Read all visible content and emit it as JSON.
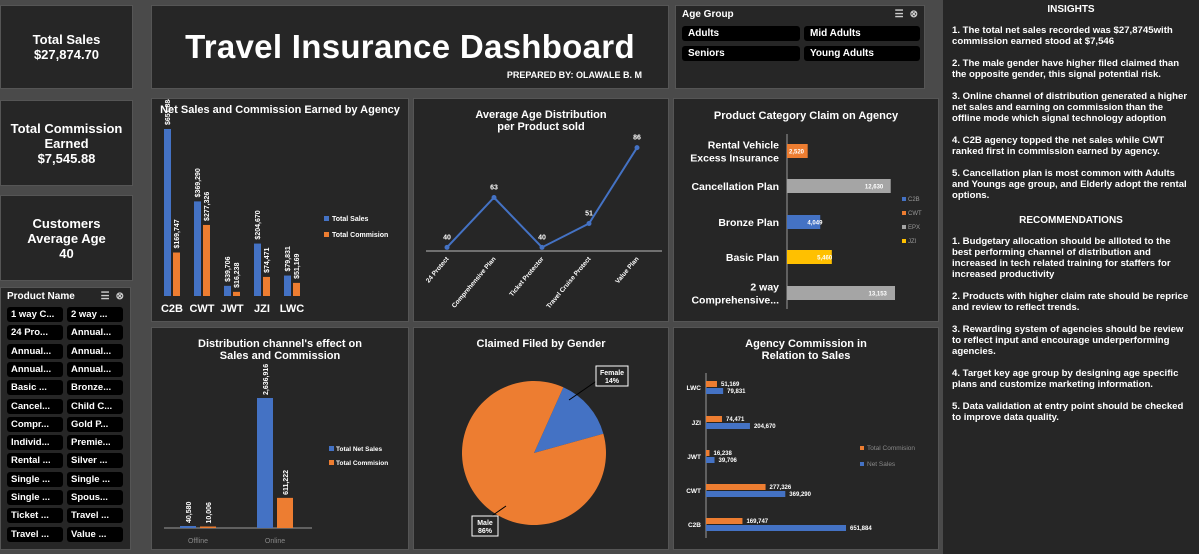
{
  "kpis": {
    "sales": {
      "label": "Total Sales",
      "value": "$27,874.70"
    },
    "commission": {
      "label": "Total Commission Earned",
      "value": "$7,545.88"
    },
    "age": {
      "label": "Customers Average Age",
      "value": "40"
    }
  },
  "header": {
    "title": "Travel Insurance Dashboard",
    "subtitle": "PREPARED BY: OLAWALE B. M"
  },
  "age_slicer": {
    "title": "Age Group",
    "items": [
      "Adults",
      "Mid Adults",
      "Seniors",
      "Young Adults"
    ]
  },
  "product_slicer": {
    "title": "Product Name",
    "items": [
      "1 way C...",
      "2 way ...",
      "24 Pro...",
      "Annual...",
      "Annual...",
      "Annual...",
      "Annual...",
      "Annual...",
      "Basic ...",
      "Bronze...",
      "Cancel...",
      "Child C...",
      "Compr...",
      "Gold P...",
      "Individ...",
      "Premie...",
      "Rental ...",
      "Silver ...",
      "Single ...",
      "Single ...",
      "Single ...",
      "Spous...",
      "Ticket ...",
      "Travel ...",
      "Travel ...",
      "Value ..."
    ]
  },
  "chart_data": [
    {
      "id": "agency",
      "type": "bar",
      "title": "Net Sales and Commission Earned by Agency",
      "categories": [
        "C2B",
        "CWT",
        "JWT",
        "JZI",
        "LWC"
      ],
      "series": [
        {
          "name": "Total Sales",
          "values": [
            651884,
            369290,
            39706,
            204670,
            79831
          ],
          "labels": [
            "$651,884",
            "$369,290",
            "$39,706",
            "$204,670",
            "$79,831"
          ],
          "color": "#4472c4"
        },
        {
          "name": "Total Commision",
          "values": [
            169747,
            277326,
            16238,
            74471,
            51169
          ],
          "labels": [
            "$169,747",
            "$277,326",
            "$16,238",
            "$74,471",
            "$51,169"
          ],
          "color": "#ed7d31"
        }
      ],
      "legend": "right"
    },
    {
      "id": "age",
      "type": "line",
      "title": "Average Age  Distribution per Product sold",
      "categories": [
        "24 Protect",
        "Comprehensive Plan",
        "Ticket Protector",
        "Travel Cruise Protect",
        "Value Plan"
      ],
      "values": [
        40,
        63,
        40,
        51,
        86
      ],
      "labels": [
        "40",
        "63",
        "40",
        "51",
        "86"
      ],
      "color": "#4472c4"
    },
    {
      "id": "claim",
      "type": "bar",
      "title": "Product Category Claim on Agency",
      "categories": [
        "Rental Vehicle Excess Insurance",
        "Cancellation Plan",
        "Bronze Plan",
        "Basic Plan",
        "2 way Comprehensive..."
      ],
      "cat_lines": [
        [
          "Rental Vehicle",
          "Excess Insurance"
        ],
        [
          "Cancellation Plan"
        ],
        [
          "Bronze Plan"
        ],
        [
          "Basic Plan"
        ],
        [
          "2 way",
          "Comprehensive..."
        ]
      ],
      "values": [
        2520,
        12630,
        4049,
        5460,
        13153
      ],
      "labels": [
        "2,520",
        "12,630",
        "4,049",
        "5,460",
        "13,153"
      ],
      "colors": [
        "#ed7d31",
        "#a5a5a5",
        "#4472c4",
        "#ffc000",
        "#a5a5a5"
      ],
      "legend": [
        "C2B",
        "CWT",
        "EPX",
        "JZI"
      ],
      "legend_colors": [
        "#4472c4",
        "#ed7d31",
        "#a5a5a5",
        "#ffc000"
      ]
    },
    {
      "id": "channel",
      "type": "bar",
      "title": "Distribution channel's effect on Sales and Commission",
      "categories": [
        "Offline",
        "Online"
      ],
      "series": [
        {
          "name": "Total Net Sales",
          "values": [
            40580,
            2636916
          ],
          "labels": [
            "40,580",
            "2,636,916"
          ],
          "color": "#4472c4"
        },
        {
          "name": "Total Commision",
          "values": [
            10006,
            611222
          ],
          "labels": [
            "10,006",
            "611,222"
          ],
          "color": "#ed7d31"
        }
      ],
      "legend": "right"
    },
    {
      "id": "gender",
      "type": "pie",
      "title": "Claimed Filed by Gender",
      "slices": [
        {
          "name": "Female",
          "value": 14,
          "label": "14%",
          "color": "#4472c4"
        },
        {
          "name": "Male",
          "value": 86,
          "label": "86%",
          "color": "#ed7d31"
        }
      ]
    },
    {
      "id": "agencycomm",
      "type": "bar",
      "title": "Agency Commission in Relation to Sales",
      "categories": [
        "LWC",
        "JZI",
        "JWT",
        "CWT",
        "C2B"
      ],
      "series": [
        {
          "name": "Total Commision",
          "values": [
            51169,
            74471,
            16238,
            277326,
            169747
          ],
          "labels": [
            "51,169",
            "74,471",
            "16,238",
            "277,326",
            "169,747"
          ],
          "color": "#ed7d31"
        },
        {
          "name": "Net Sales",
          "values": [
            79831,
            204670,
            39706,
            369290,
            651884
          ],
          "labels": [
            "79,831",
            "204,670",
            "39,706",
            "369,290",
            "651,884"
          ],
          "color": "#4472c4"
        }
      ],
      "legend": "right"
    }
  ],
  "insights": {
    "title": "INSIGHTS",
    "items": [
      "1.  The total net sales recorded was $27,8745with commission earned stood at $7,546",
      "2. The male gender have higher filed claimed than the opposite gender, this signal potential risk.",
      "3. Online channel of distribution generated a higher net sales and earning on commission than the offline mode which signal technology adoption",
      "4. C2B agency topped the net sales while CWT ranked first in commission earned by agency.",
      "5. Cancellation plan is most common with Adults and Youngs age group, and Elderly adopt the rental options."
    ],
    "rec_title": "RECOMMENDATIONS",
    "recs": [
      "1. Budgetary allocation should be allloted to the best performing channel of distribution and increased in tech related training for staffers for increased productivity",
      "2. Products with higher claim rate should be reprice and review to reflect trends.",
      "3. Rewarding system of agencies should be review to reflect input and encourage underperforming agencies.",
      "4. Target key age group by designing age specific plans and customize marketing information.",
      "5. Data validation at entry point should be checked to improve data quality."
    ]
  }
}
